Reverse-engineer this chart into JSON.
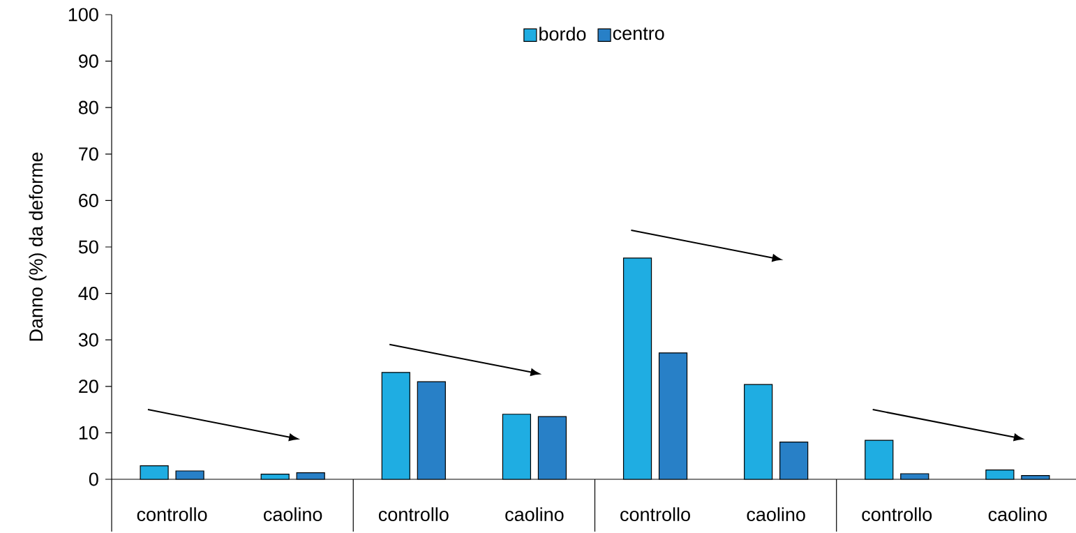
{
  "chart_data": {
    "type": "bar",
    "ylabel": "Danno (%) da deforme",
    "categories": [
      "controllo",
      "caolino",
      "controllo",
      "caolino",
      "controllo",
      "caolino",
      "controllo",
      "caolino"
    ],
    "series": [
      {
        "name": "bordo",
        "color": "#1fade2",
        "values": [
          2.9,
          1.1,
          23.0,
          14.0,
          47.6,
          20.4,
          8.4,
          2.0
        ]
      },
      {
        "name": "centro",
        "color": "#2880c7",
        "values": [
          1.8,
          1.4,
          21.0,
          13.5,
          27.2,
          8.0,
          1.2,
          0.8
        ]
      }
    ],
    "ylim": [
      0,
      100
    ],
    "yticks": [
      0,
      10,
      20,
      30,
      40,
      50,
      60,
      70,
      80,
      90,
      100
    ],
    "legend": "top",
    "grid": false
  }
}
